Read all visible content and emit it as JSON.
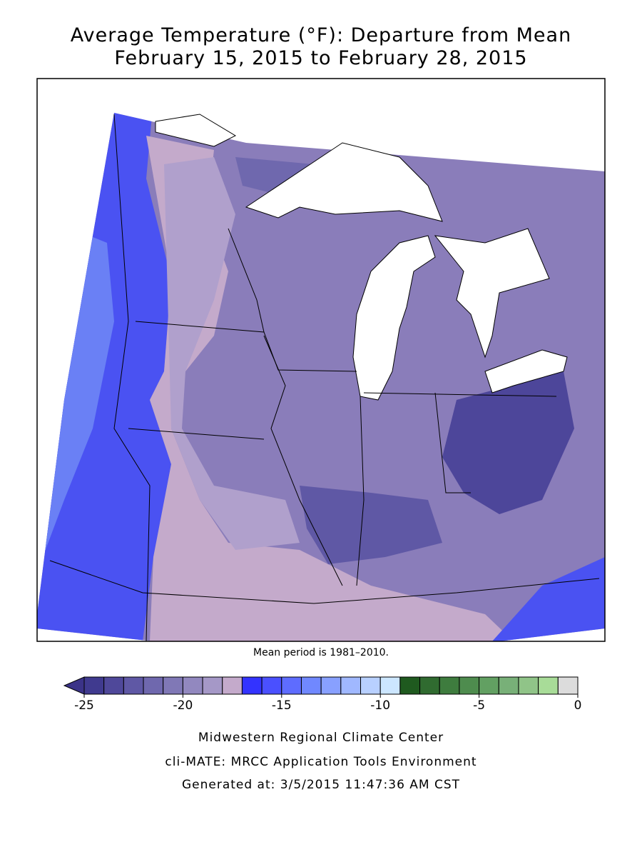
{
  "header": {
    "title": "Average Temperature (°F): Departure from Mean",
    "subtitle": "February 15, 2015 to February 28, 2015"
  },
  "map": {
    "note": "Mean period is 1981–2010."
  },
  "colorbar": {
    "range": [
      -25,
      0
    ],
    "ticks": [
      -25,
      -20,
      -15,
      -10,
      -5,
      0
    ],
    "under_color": "#3b3388",
    "colors": [
      "#403a8f",
      "#4f489a",
      "#5f58a5",
      "#6f68ae",
      "#8078b6",
      "#9288bf",
      "#a598c7",
      "#c4aacb",
      "#3333ff",
      "#4a50ff",
      "#5e6cff",
      "#7088ff",
      "#88a0ff",
      "#a0b8ff",
      "#b8d0ff",
      "#cce6ff",
      "#1f5a1f",
      "#306b30",
      "#3e7c3e",
      "#4e8c4e",
      "#62a062",
      "#78b078",
      "#90c488",
      "#a8dc98",
      "#dcdcdc"
    ]
  },
  "footer": {
    "lines": [
      "Midwestern Regional Climate Center",
      "cli-MATE: MRCC Application Tools Environment",
      "Generated at: 3/5/2015 11:47:36 AM CST"
    ]
  }
}
